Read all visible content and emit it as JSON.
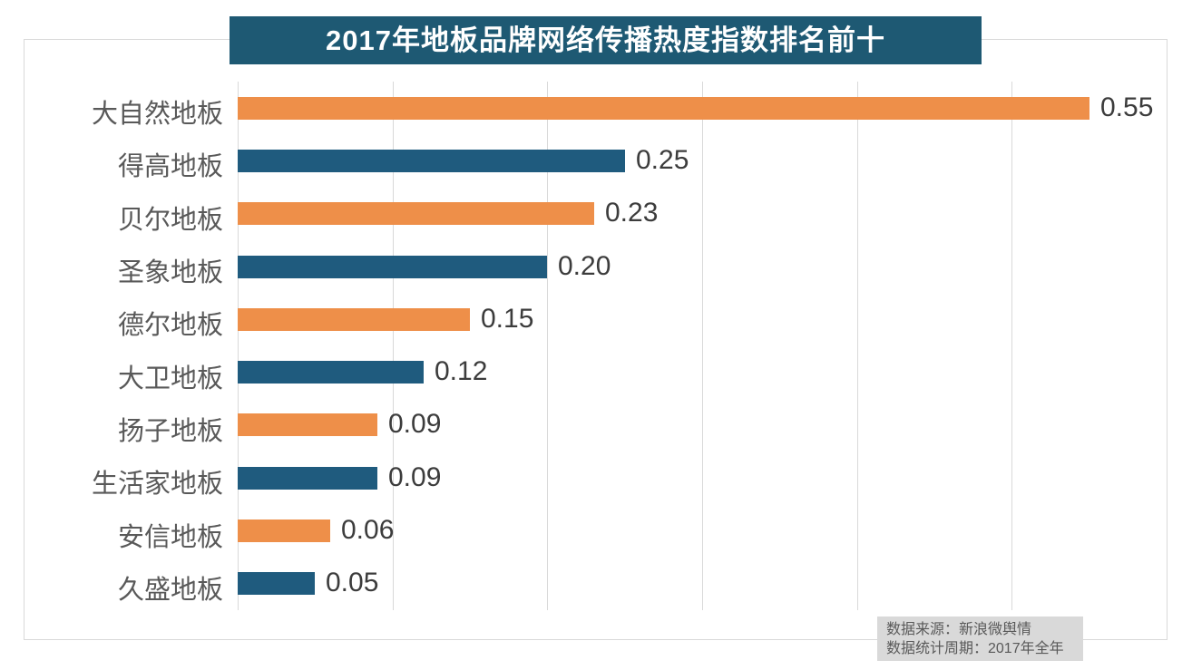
{
  "chart_data": {
    "type": "bar",
    "orientation": "horizontal",
    "title": "2017年地板品牌网络传播热度指数排名前十",
    "categories": [
      "大自然地板",
      "得高地板",
      "贝尔地板",
      "圣象地板",
      "德尔地板",
      "大卫地板",
      "扬子地板",
      "生活家地板",
      "安信地板",
      "久盛地板"
    ],
    "values": [
      0.55,
      0.25,
      0.23,
      0.2,
      0.15,
      0.12,
      0.09,
      0.09,
      0.06,
      0.05
    ],
    "value_labels": [
      "0.55",
      "0.25",
      "0.23",
      "0.20",
      "0.15",
      "0.12",
      "0.09",
      "0.09",
      "0.06",
      "0.05"
    ],
    "xlim": [
      0,
      0.6
    ],
    "gridline_interval": 0.1,
    "grid": true,
    "legend": "none",
    "bar_colors_alternating": [
      "#ee8f49",
      "#1f5b7e"
    ]
  },
  "colors": {
    "title_background": "#1e5973",
    "title_text": "#ffffff",
    "bar_orange": "#ee8f49",
    "bar_teal": "#1f5b7e",
    "gridline": "#d9d9d9",
    "frame_border": "#d9d9d9",
    "category_text": "#595959",
    "value_text": "#3c3c3c",
    "source_box_background": "#d9d9d9",
    "source_text": "#595959"
  },
  "source_note": {
    "line1": "数据来源：新浪微舆情",
    "line2": "数据统计周期：2017年全年"
  }
}
